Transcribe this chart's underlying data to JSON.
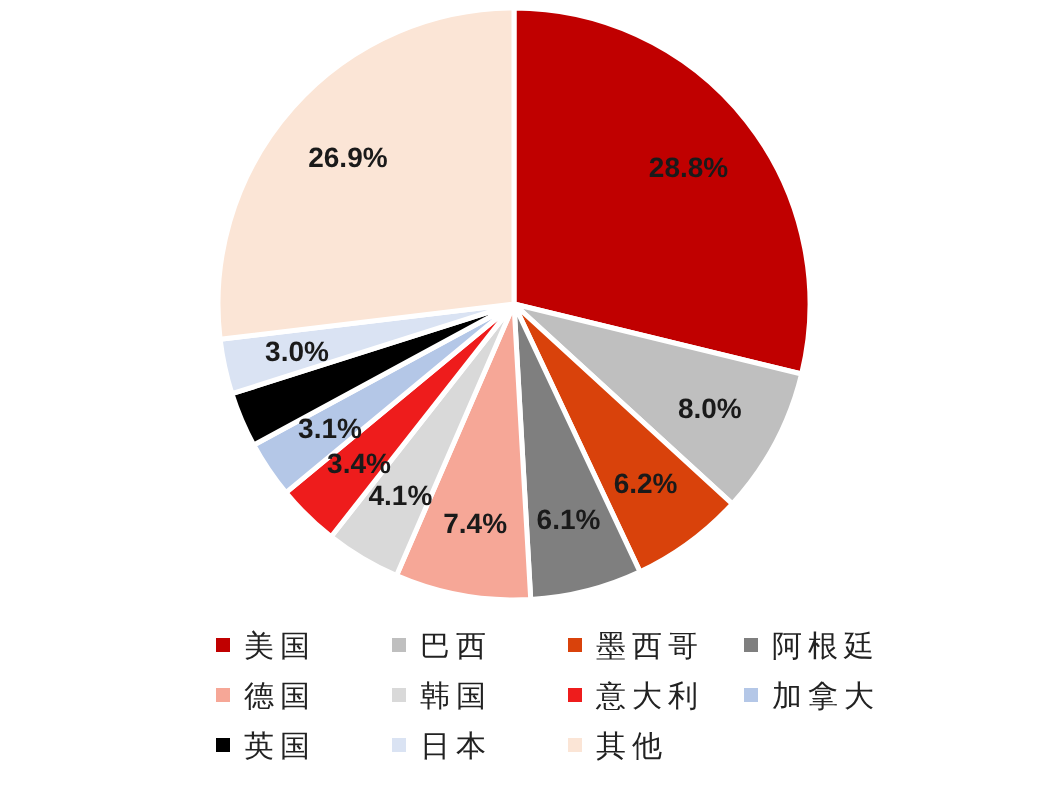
{
  "chart_data": {
    "type": "pie",
    "categories": [
      "美国",
      "巴西",
      "墨西哥",
      "阿根廷",
      "德国",
      "韩国",
      "意大利",
      "加拿大",
      "英国",
      "日本",
      "其他"
    ],
    "values": [
      28.8,
      8.0,
      6.2,
      6.1,
      7.4,
      4.1,
      3.4,
      3.1,
      3.0,
      3.0,
      26.9
    ],
    "colors": [
      "#c00000",
      "#bfbfbf",
      "#d9420b",
      "#7f7f7f",
      "#f6a797",
      "#d9d9d9",
      "#ee1c1c",
      "#b4c7e7",
      "#000000",
      "#dae3f3",
      "#fbe5d6"
    ],
    "value_labels": [
      "28.8%",
      "8.0%",
      "6.2%",
      "6.1%",
      "7.4%",
      "4.1%",
      "3.4%",
      "3.1%",
      null,
      "3.0%",
      "26.9%"
    ],
    "legend": "bottom"
  }
}
